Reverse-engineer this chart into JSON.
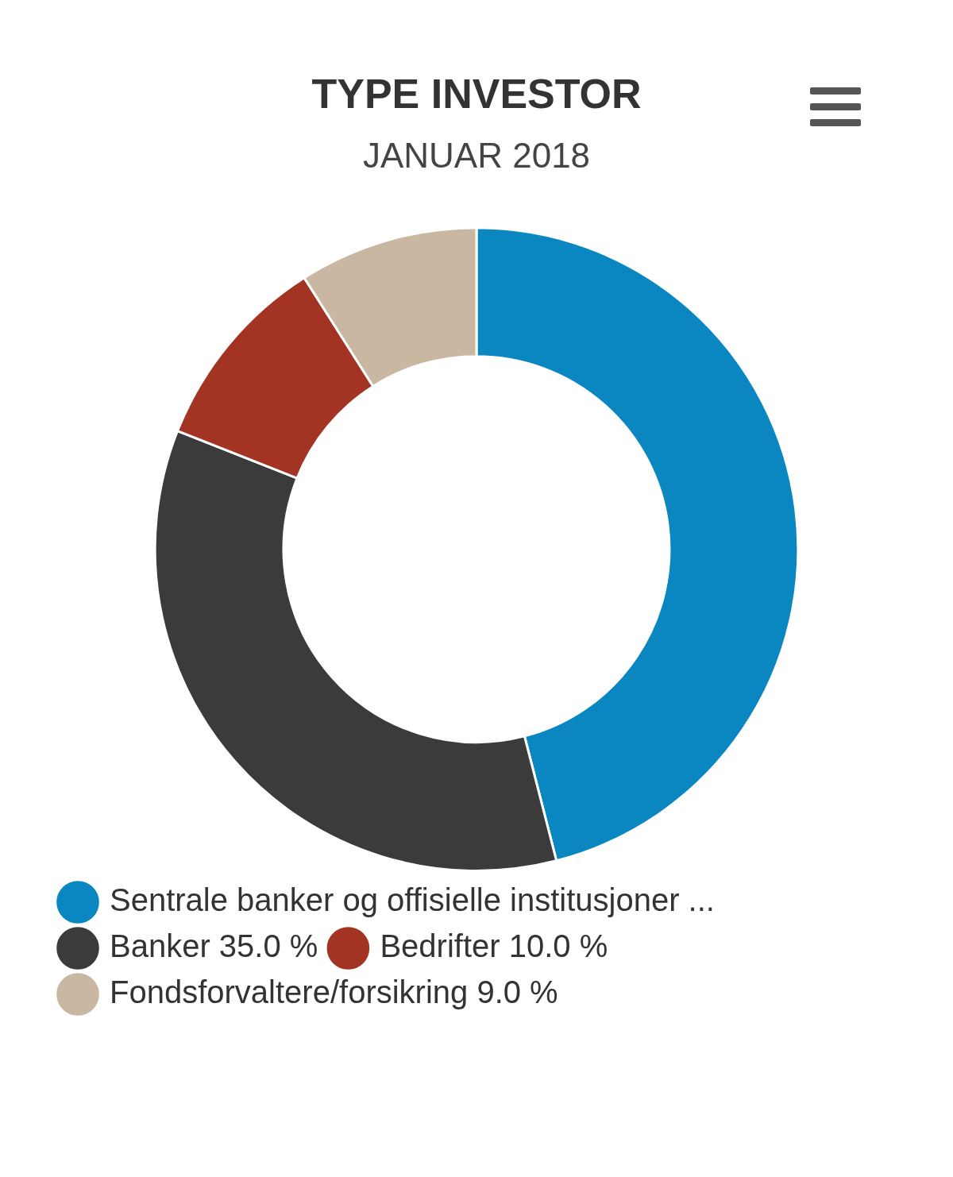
{
  "chart_data": {
    "type": "donut",
    "title": "TYPE INVESTOR",
    "subtitle": "JANUAR 2018",
    "categories": [
      "Sentrale banker og offisielle institusjoner ...",
      "Banker 35.0 %",
      "Bedrifter 10.0 %",
      "Fondsforvaltere/forsikring 9.0 %"
    ],
    "values": [
      46,
      35,
      10,
      9
    ],
    "colors": [
      "#0a87c1",
      "#3b3b3b",
      "#a33423",
      "#c9b7a1"
    ],
    "legend": "bottom"
  }
}
